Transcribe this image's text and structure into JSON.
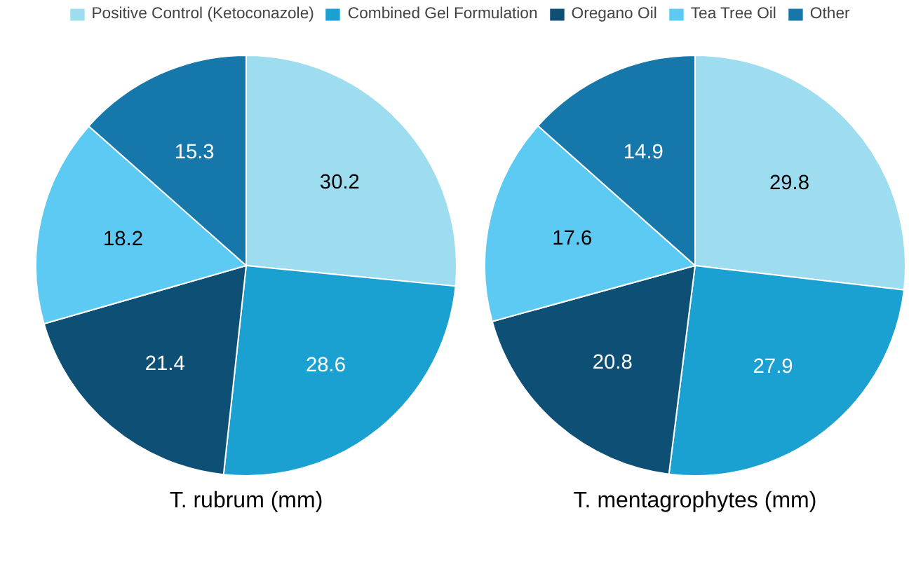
{
  "chart_data": [
    {
      "type": "pie",
      "title": "T. rubrum (mm)",
      "categories": [
        "Positive Control (Ketoconazole)",
        "Combined Gel Formulation",
        "Oregano Oil",
        "Tea Tree Oil",
        "Other"
      ],
      "values": [
        30.2,
        28.6,
        21.4,
        18.2,
        15.3
      ],
      "colors": [
        "#9edcef",
        "#1ba0d2",
        "#0e4f75",
        "#5ccaf2",
        "#1577aa"
      ],
      "data_labels": true,
      "legend": "top"
    },
    {
      "type": "pie",
      "title": "T. mentagrophytes (mm)",
      "values": [
        29.8,
        27.9,
        20.8,
        17.6,
        14.9
      ],
      "colors": [
        "#9edcef",
        "#1ba0d2",
        "#0e4f75",
        "#5ccaf2",
        "#1577aa"
      ],
      "data_labels": true
    }
  ]
}
